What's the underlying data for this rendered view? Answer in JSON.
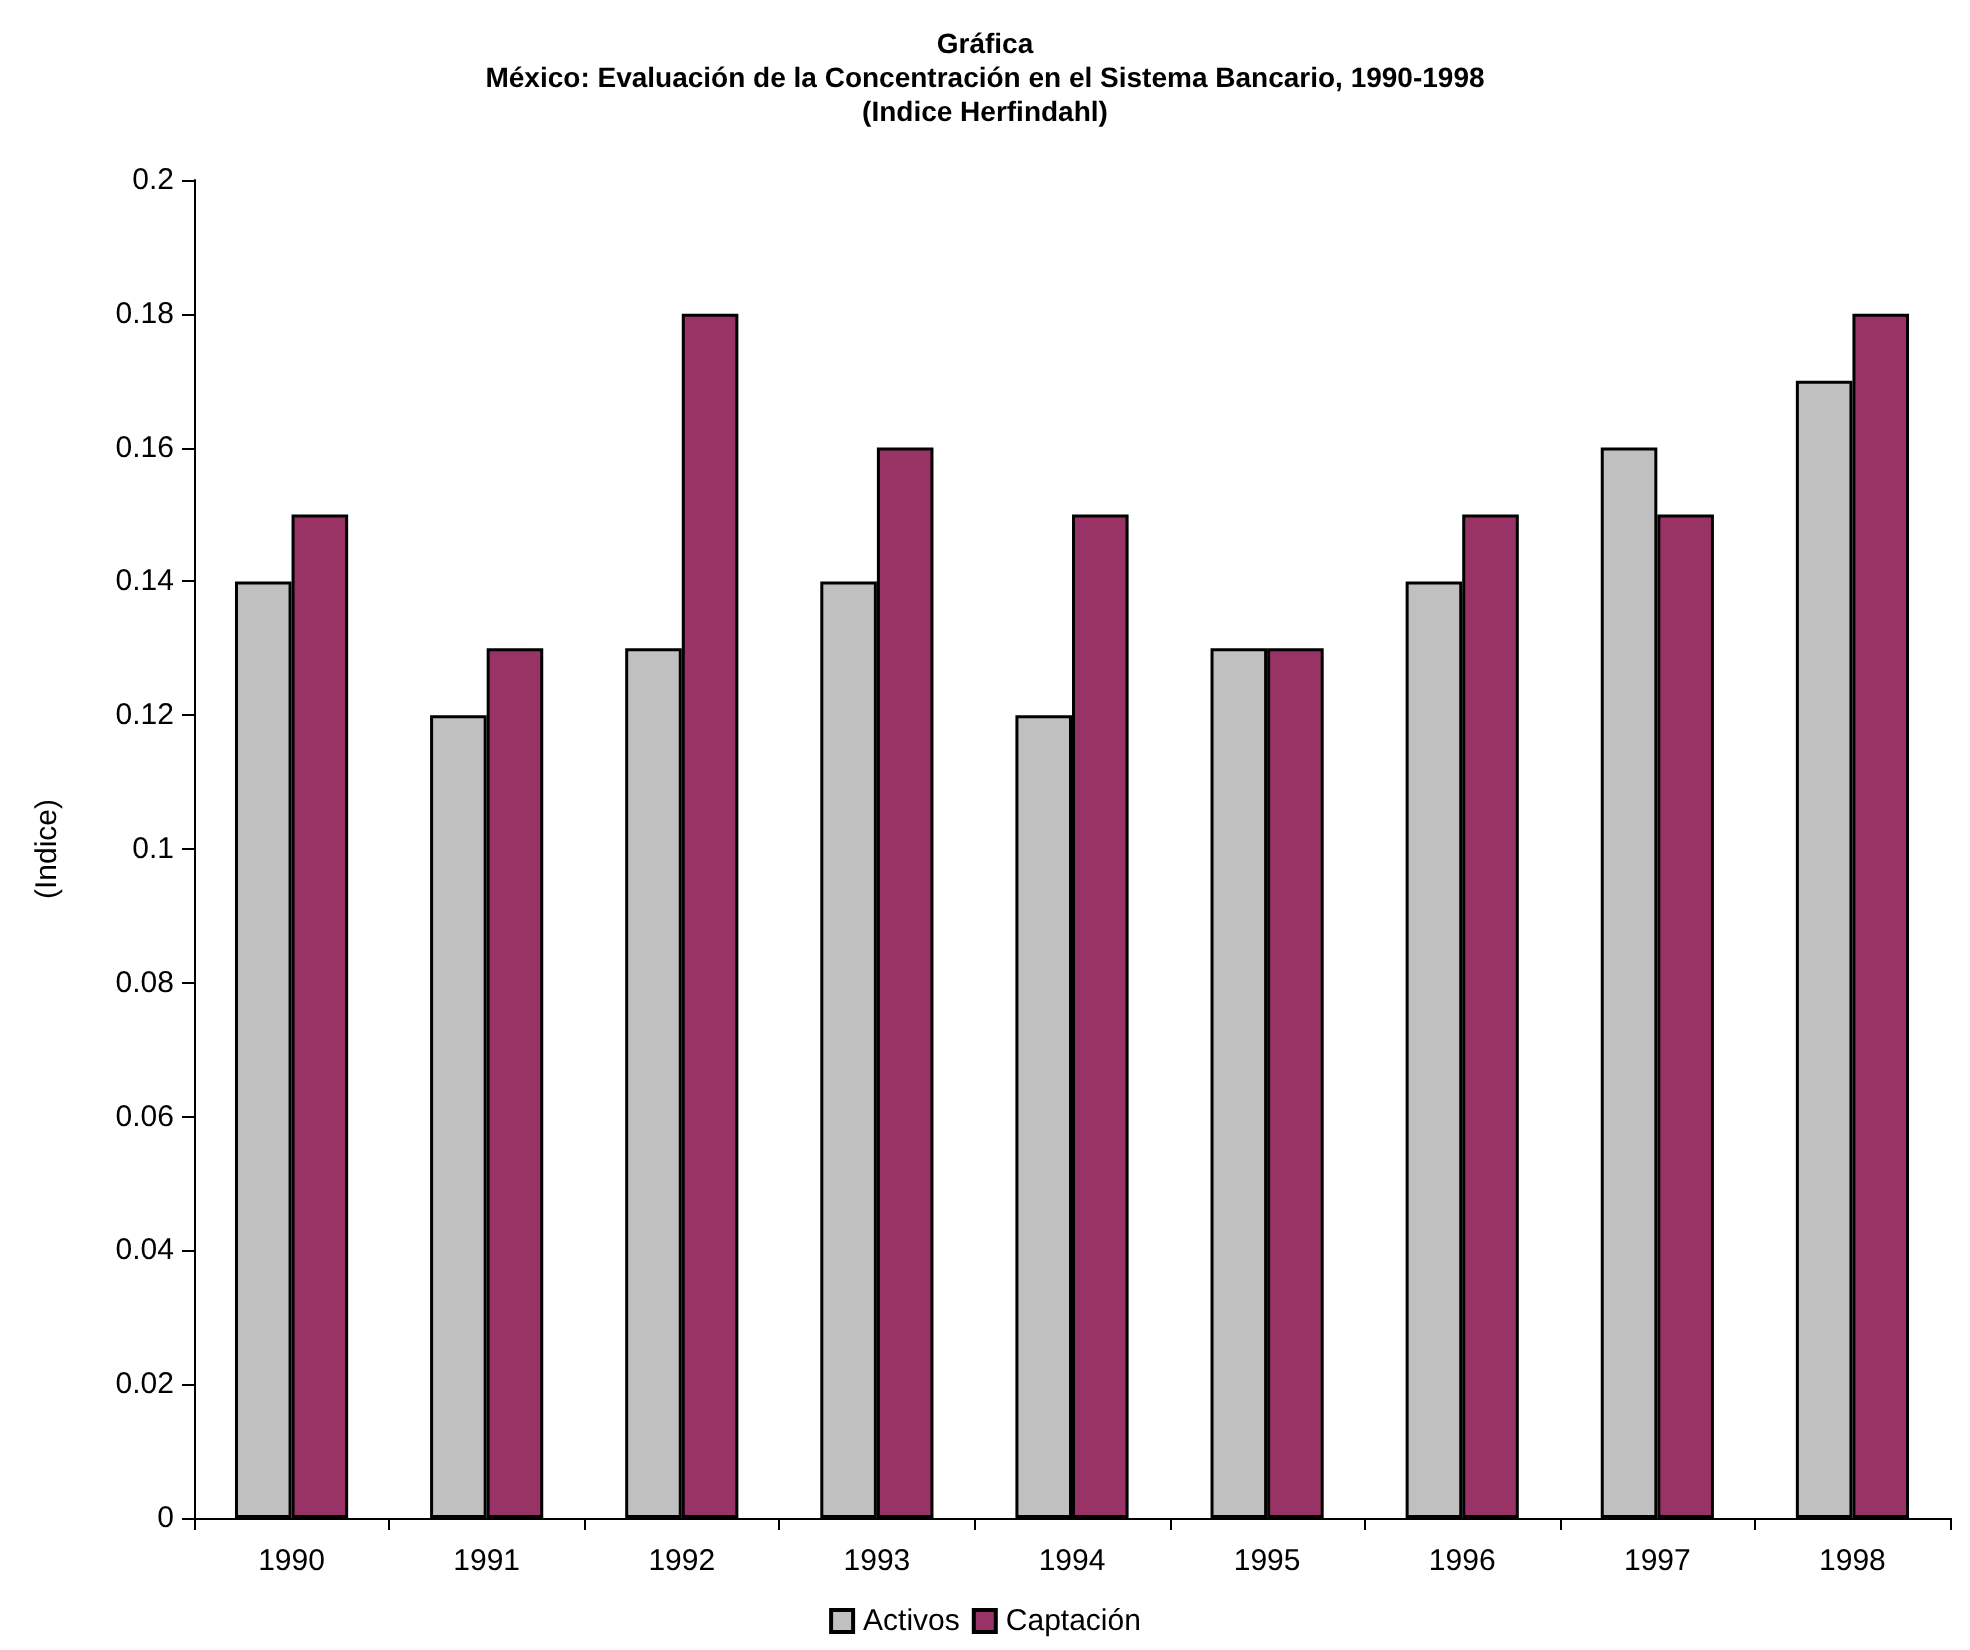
{
  "chart_data": {
    "type": "bar",
    "title": "Gráfica\nMéxico: Evaluación de la Concentración en el Sistema Bancario, 1990-1998\n(Indice Herfindahl)",
    "ylabel": "(Indice)",
    "categories": [
      "1990",
      "1991",
      "1992",
      "1993",
      "1994",
      "1995",
      "1996",
      "1997",
      "1998"
    ],
    "series": [
      {
        "name": "Activos",
        "color": "#c0c0c0",
        "values": [
          0.14,
          0.12,
          0.13,
          0.14,
          0.12,
          0.13,
          0.14,
          0.16,
          0.17
        ]
      },
      {
        "name": "Captación",
        "color": "#993366",
        "values": [
          0.15,
          0.13,
          0.18,
          0.16,
          0.15,
          0.13,
          0.15,
          0.15,
          0.18
        ]
      }
    ],
    "ylim": [
      0,
      0.2
    ],
    "yticks": [
      0,
      0.02,
      0.04,
      0.06,
      0.08,
      0.1,
      0.12,
      0.14,
      0.16,
      0.18,
      0.2
    ],
    "grid": false,
    "legend": "bottom"
  }
}
